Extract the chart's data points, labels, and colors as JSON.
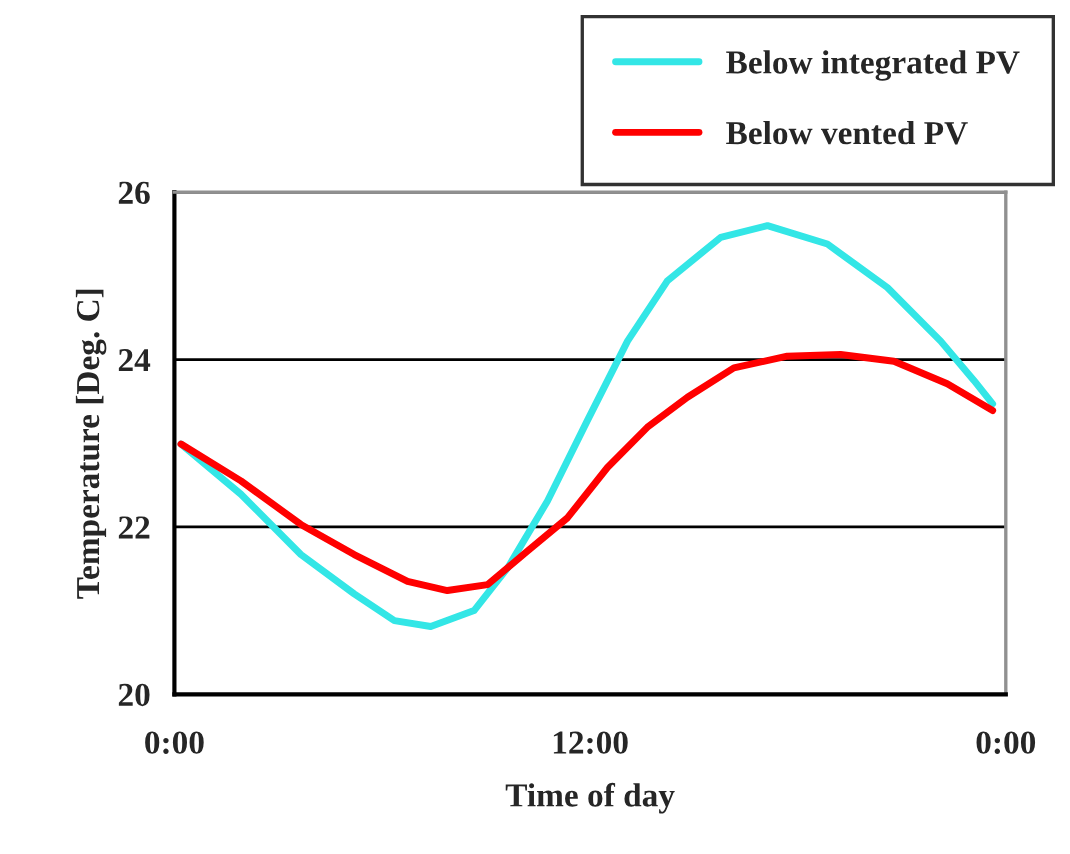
{
  "chart_data": {
    "type": "line",
    "xlabel": "Time of day",
    "ylabel": "Temperature [Deg. C]",
    "xlim": [
      0,
      24
    ],
    "xticks": [
      {
        "value": 0,
        "label": "0:00"
      },
      {
        "value": 12,
        "label": "12:00"
      },
      {
        "value": 24,
        "label": "0:00"
      }
    ],
    "ylim": [
      20,
      26
    ],
    "yticks": [
      20,
      22,
      24,
      26
    ],
    "grid": "y",
    "legend": "top right",
    "marker": "none",
    "line_style": "solid",
    "series": [
      {
        "name": "Below integrated PV",
        "color": "#33e6e6",
        "x": [
          0.19,
          1.92,
          3.65,
          5.19,
          6.35,
          7.4,
          8.65,
          9.62,
          10.77,
          11.92,
          13.08,
          14.23,
          15.77,
          17.12,
          18.85,
          20.58,
          22.12,
          23.08,
          23.62
        ],
        "values": [
          22.99,
          22.39,
          21.67,
          21.2,
          20.88,
          20.81,
          21.0,
          21.51,
          22.31,
          23.27,
          24.22,
          24.94,
          25.46,
          25.6,
          25.38,
          24.86,
          24.22,
          23.75,
          23.47
        ]
      },
      {
        "name": "Below vented PV",
        "color": "#ff0000",
        "x": [
          0.19,
          1.92,
          3.65,
          5.19,
          6.73,
          7.88,
          9.04,
          10.19,
          11.35,
          12.5,
          13.65,
          14.81,
          16.15,
          17.69,
          19.23,
          20.77,
          22.31,
          23.62
        ],
        "values": [
          22.99,
          22.55,
          22.03,
          21.67,
          21.35,
          21.24,
          21.31,
          21.71,
          22.11,
          22.71,
          23.19,
          23.55,
          23.9,
          24.04,
          24.06,
          23.98,
          23.71,
          23.39
        ]
      }
    ]
  }
}
